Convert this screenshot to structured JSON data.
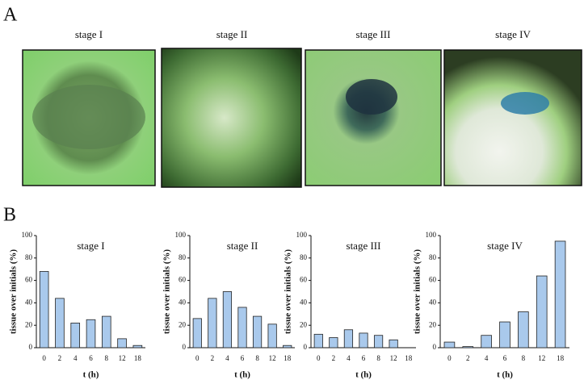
{
  "panel_labels": {
    "a": "A",
    "b": "B"
  },
  "photos": [
    {
      "label": "stage I"
    },
    {
      "label": "stage II"
    },
    {
      "label": "stage III"
    },
    {
      "label": "stage IV"
    }
  ],
  "chart_data": [
    {
      "type": "bar",
      "title": "stage I",
      "categories": [
        "0",
        "2",
        "4",
        "6",
        "8",
        "12",
        "18"
      ],
      "values": [
        68,
        44,
        22,
        25,
        28,
        8,
        2
      ],
      "color": "#a9c9ec",
      "ylim": [
        0,
        100
      ],
      "yticks": [
        0,
        20,
        40,
        60,
        80,
        100
      ],
      "xlabel": "t (h)",
      "ylabel": "tissue over initials (%)"
    },
    {
      "type": "bar",
      "title": "stage II",
      "categories": [
        "0",
        "2",
        "4",
        "6",
        "8",
        "12",
        "18"
      ],
      "values": [
        26,
        44,
        50,
        36,
        28,
        21,
        2
      ],
      "color": "#a9c9ec",
      "ylim": [
        0,
        100
      ],
      "yticks": [
        0,
        20,
        40,
        60,
        80,
        100
      ],
      "xlabel": "t (h)",
      "ylabel": "tissue over initials (%)"
    },
    {
      "type": "bar",
      "title": "stage III",
      "categories": [
        "0",
        "2",
        "4",
        "6",
        "8",
        "12",
        "18"
      ],
      "values": [
        12,
        9,
        16,
        13,
        11,
        7,
        0
      ],
      "color": "#a9c9ec",
      "ylim": [
        0,
        100
      ],
      "yticks": [
        0,
        20,
        40,
        60,
        80,
        100
      ],
      "xlabel": "t (h)",
      "ylabel": "tissue over initials (%)"
    },
    {
      "type": "bar",
      "title": "stage IV",
      "categories": [
        "0",
        "2",
        "4",
        "6",
        "8",
        "12",
        "18"
      ],
      "values": [
        5,
        1,
        11,
        23,
        32,
        64,
        95
      ],
      "color": "#a9c9ec",
      "ylim": [
        0,
        100
      ],
      "yticks": [
        0,
        20,
        40,
        60,
        80,
        100
      ],
      "xlabel": "t (h)",
      "ylabel": "tissue over initials (%)"
    }
  ]
}
